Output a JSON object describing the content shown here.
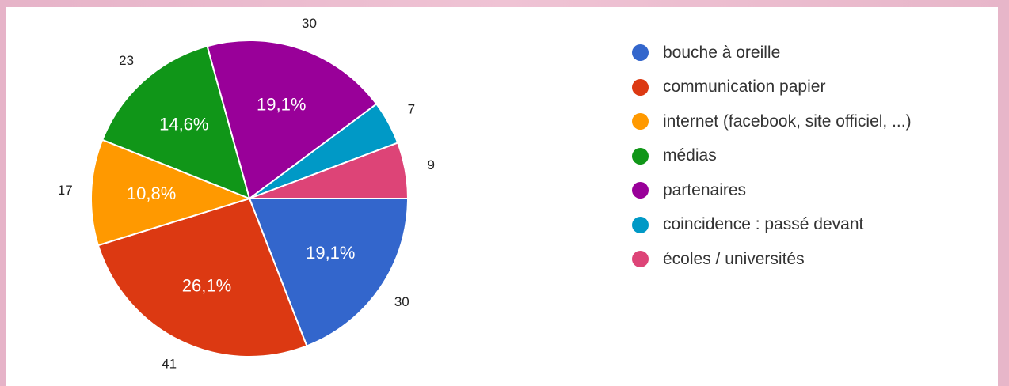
{
  "chart_data": {
    "type": "pie",
    "title": "",
    "categories": [
      "bouche à oreille",
      "communication papier",
      "internet (facebook, site officiel, ...)",
      "médias",
      "partenaires",
      "coincidence : passé devant",
      "écoles / universités"
    ],
    "values": [
      30,
      41,
      17,
      23,
      30,
      7,
      9
    ],
    "percent_labels": [
      "19,1%",
      "26,1%",
      "10,8%",
      "14,6%",
      "19,1%",
      "",
      ""
    ],
    "colors": [
      "#3366cc",
      "#dc3912",
      "#ff9900",
      "#109618",
      "#990099",
      "#0099c6",
      "#dd4477"
    ],
    "legend_position": "right"
  }
}
